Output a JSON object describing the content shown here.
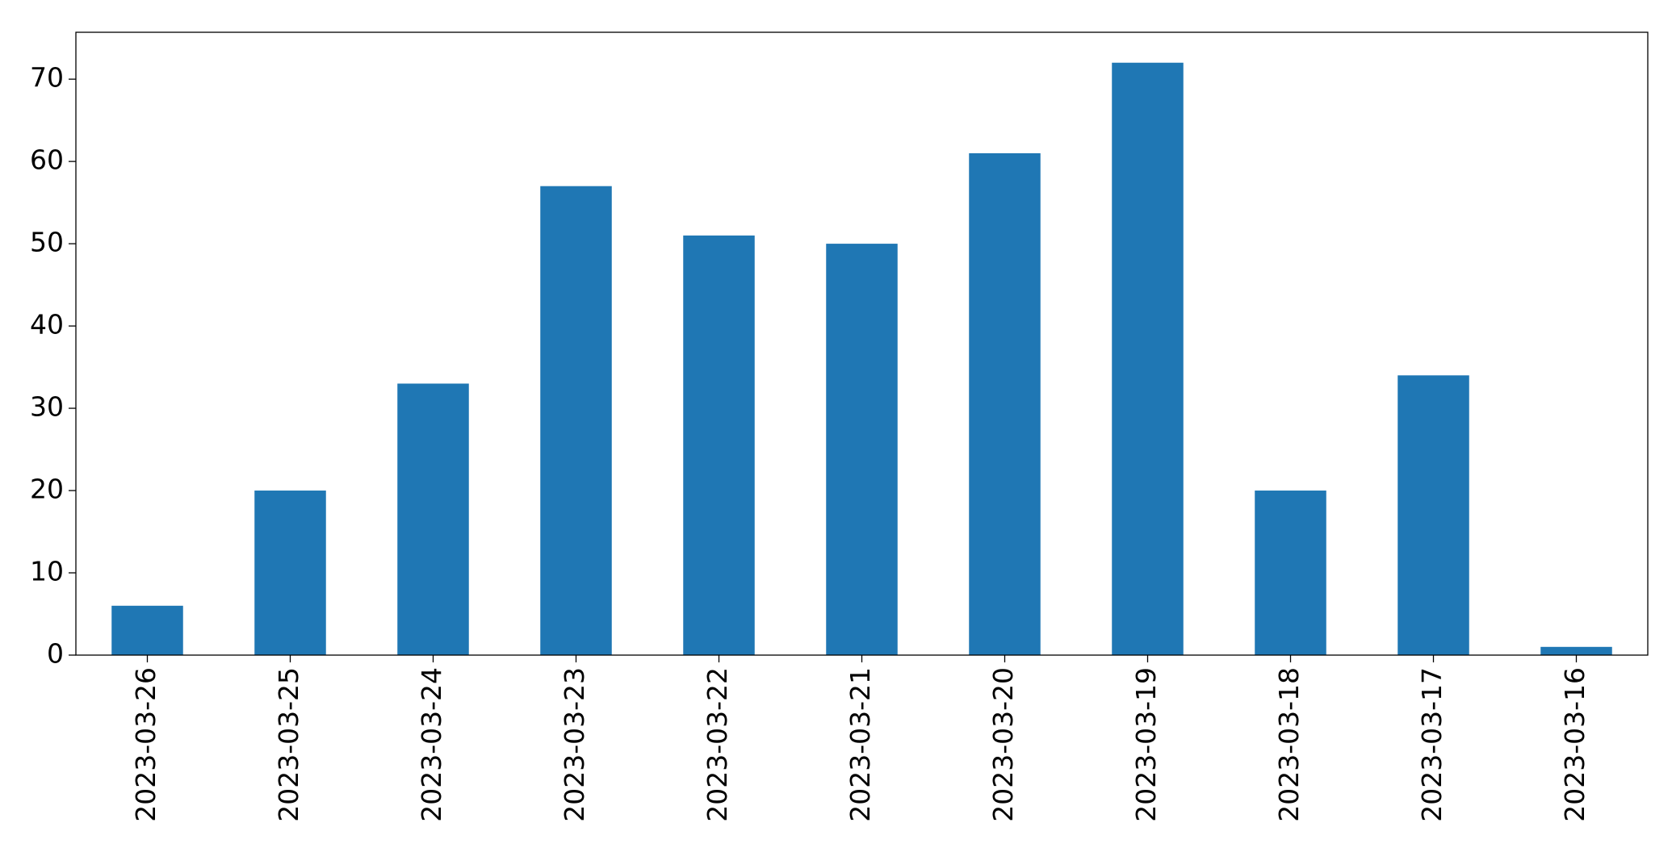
{
  "chart_data": {
    "type": "bar",
    "categories": [
      "2023-03-26",
      "2023-03-25",
      "2023-03-24",
      "2023-03-23",
      "2023-03-22",
      "2023-03-21",
      "2023-03-20",
      "2023-03-19",
      "2023-03-18",
      "2023-03-17",
      "2023-03-16"
    ],
    "values": [
      6,
      20,
      33,
      57,
      51,
      50,
      61,
      72,
      20,
      34,
      1
    ],
    "color": "#1f77b4",
    "ylim": [
      0,
      75.7
    ],
    "yticks": [
      0,
      10,
      20,
      30,
      40,
      50,
      60,
      70
    ],
    "grid": false
  }
}
